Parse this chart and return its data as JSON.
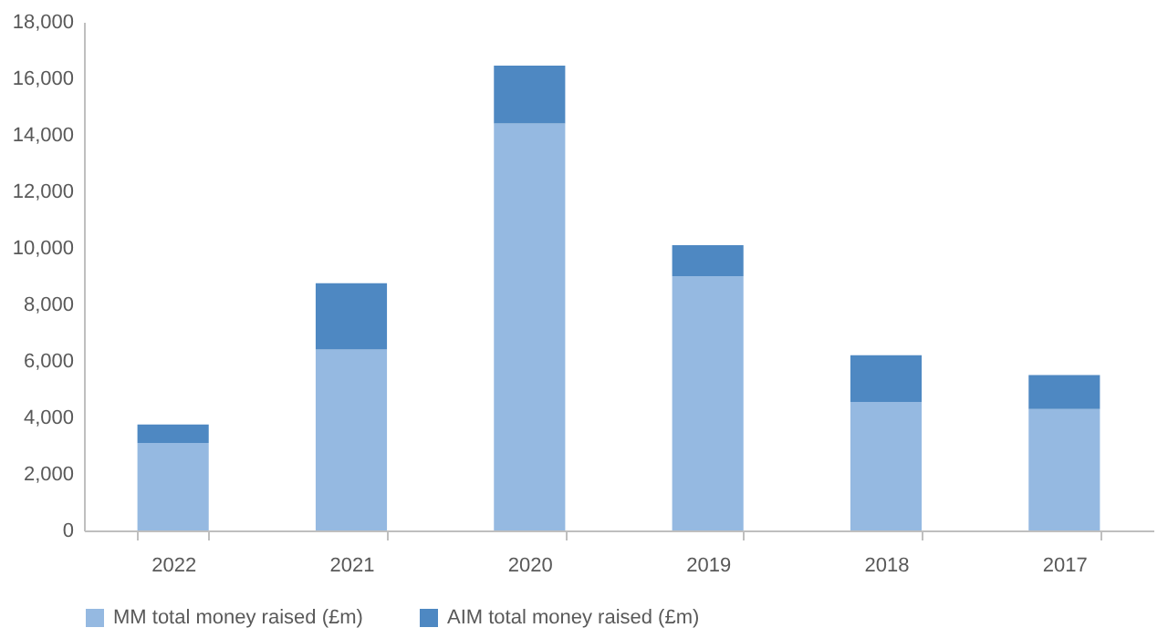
{
  "chart_data": {
    "type": "bar",
    "stacked": true,
    "categories": [
      "2022",
      "2021",
      "2020",
      "2019",
      "2018",
      "2017"
    ],
    "series": [
      {
        "name": "MM total money raised (£m)",
        "color": "#95b9e1",
        "values": [
          3100,
          6400,
          14400,
          9000,
          4550,
          4300
        ]
      },
      {
        "name": "AIM total money raised (£m)",
        "color": "#4e88c2",
        "values": [
          650,
          2350,
          2050,
          1100,
          1650,
          1200
        ]
      }
    ],
    "ylim": [
      0,
      18000
    ],
    "yticks": [
      {
        "value": 0,
        "label": "0"
      },
      {
        "value": 2000,
        "label": "2,000"
      },
      {
        "value": 4000,
        "label": "4,000"
      },
      {
        "value": 6000,
        "label": "6,000"
      },
      {
        "value": 8000,
        "label": "8,000"
      },
      {
        "value": 10000,
        "label": "10,000"
      },
      {
        "value": 12000,
        "label": "12,000"
      },
      {
        "value": 14000,
        "label": "14,000"
      },
      {
        "value": 16000,
        "label": "16,000"
      },
      {
        "value": 18000,
        "label": "18,000"
      }
    ],
    "grid": false,
    "legend": "bottom"
  }
}
